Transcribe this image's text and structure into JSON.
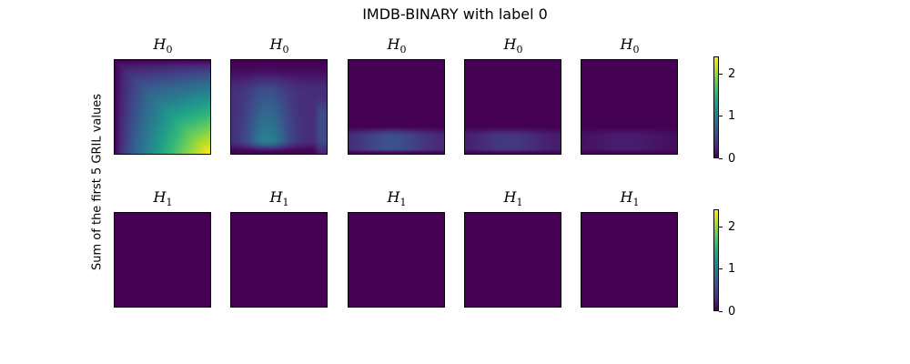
{
  "chart_data": {
    "type": "heatmap",
    "title": "IMDB-BINARY with label 0",
    "ylabel": "Sum of the first 5 GRIL values",
    "colormap": "viridis",
    "colorbar": {
      "range": [
        0,
        2.4
      ],
      "ticks": [
        "0",
        "1",
        "2"
      ]
    },
    "rows": [
      {
        "panel_title": "H",
        "panel_title_sub": "0",
        "panels": [
          {
            "title": "H",
            "sub": "0",
            "pattern": "diagonal-ramp",
            "max_value": 2.4
          },
          {
            "title": "H",
            "sub": "0",
            "pattern": "central-funnel",
            "max_value": 1.2
          },
          {
            "title": "H",
            "sub": "0",
            "pattern": "bottom-band",
            "max_value": 0.6
          },
          {
            "title": "H",
            "sub": "0",
            "pattern": "bottom-band",
            "max_value": 0.4
          },
          {
            "title": "H",
            "sub": "0",
            "pattern": "bottom-band",
            "max_value": 0.2
          }
        ]
      },
      {
        "panel_title": "H",
        "panel_title_sub": "1",
        "panels": [
          {
            "title": "H",
            "sub": "1",
            "pattern": "zero",
            "max_value": 0
          },
          {
            "title": "H",
            "sub": "1",
            "pattern": "zero",
            "max_value": 0
          },
          {
            "title": "H",
            "sub": "1",
            "pattern": "zero",
            "max_value": 0
          },
          {
            "title": "H",
            "sub": "1",
            "pattern": "zero",
            "max_value": 0
          },
          {
            "title": "H",
            "sub": "1",
            "pattern": "zero",
            "max_value": 0
          }
        ]
      }
    ]
  }
}
